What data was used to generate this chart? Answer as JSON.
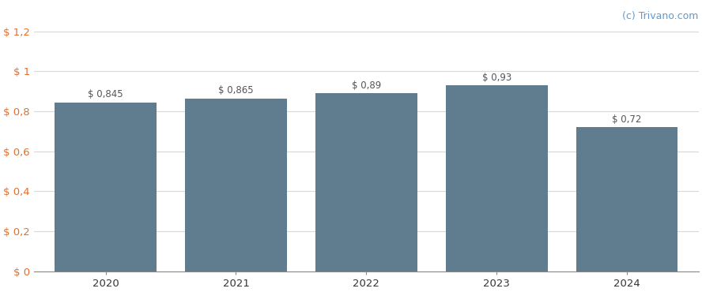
{
  "categories": [
    "2020",
    "2021",
    "2022",
    "2023",
    "2024"
  ],
  "values": [
    0.845,
    0.865,
    0.89,
    0.93,
    0.72
  ],
  "labels": [
    "$ 0,845",
    "$ 0,865",
    "$ 0,89",
    "$ 0,93",
    "$ 0,72"
  ],
  "bar_color": "#5f7d8e",
  "background_color": "#ffffff",
  "ylim": [
    0,
    1.2
  ],
  "yticks": [
    0,
    0.2,
    0.4,
    0.6,
    0.8,
    1.0,
    1.2
  ],
  "ytick_labels": [
    "$ 0",
    "$ 0,2",
    "$ 0,4",
    "$ 0,6",
    "$ 0,8",
    "$ 1",
    "$ 1,2"
  ],
  "grid_color": "#d8d8d8",
  "label_color": "#555555",
  "ytick_color": "#e07030",
  "watermark": "(c) Trivano.com",
  "watermark_color": "#5b9bd5",
  "bar_width": 0.78,
  "label_fontsize": 8.5,
  "tick_fontsize": 9.5,
  "watermark_fontsize": 9
}
